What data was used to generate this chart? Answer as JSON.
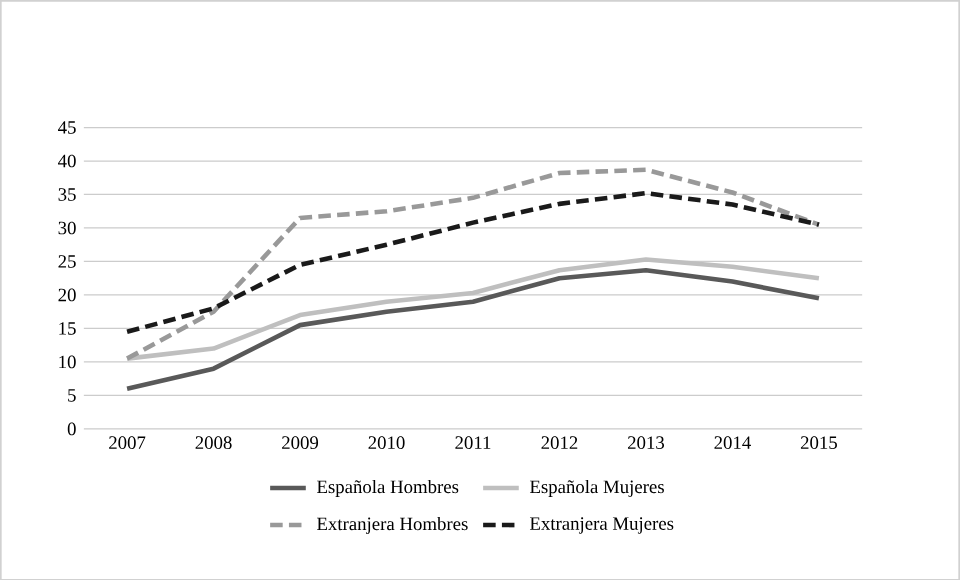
{
  "chart_data": {
    "type": "line",
    "categories": [
      "2007",
      "2008",
      "2009",
      "2010",
      "2011",
      "2012",
      "2013",
      "2014",
      "2015"
    ],
    "series": [
      {
        "name": "Española Hombres",
        "color": "#595959",
        "line_style": "solid",
        "values": [
          6,
          9,
          15.5,
          17.5,
          19,
          22.5,
          23.7,
          22,
          19.5
        ]
      },
      {
        "name": "Española Mujeres",
        "color": "#bfbfbf",
        "line_style": "solid",
        "values": [
          10.5,
          12,
          17,
          19,
          20.3,
          23.7,
          25.3,
          24.2,
          22.5
        ]
      },
      {
        "name": "Extranjera Hombres",
        "color": "#999999",
        "line_style": "dashed",
        "values": [
          10.5,
          17.5,
          31.5,
          32.5,
          34.5,
          38.2,
          38.7,
          35.3,
          30.5
        ]
      },
      {
        "name": "Extranjera Mujeres",
        "color": "#1a1a1a",
        "line_style": "dashed",
        "values": [
          14.5,
          18,
          24.5,
          27.5,
          30.8,
          33.6,
          35.2,
          33.5,
          30.5
        ]
      }
    ],
    "ylim": [
      0,
      45
    ],
    "yticks": [
      0,
      5,
      10,
      15,
      20,
      25,
      30,
      35,
      40,
      45
    ],
    "grid": "y",
    "legend": "bottom",
    "marker": "none"
  }
}
